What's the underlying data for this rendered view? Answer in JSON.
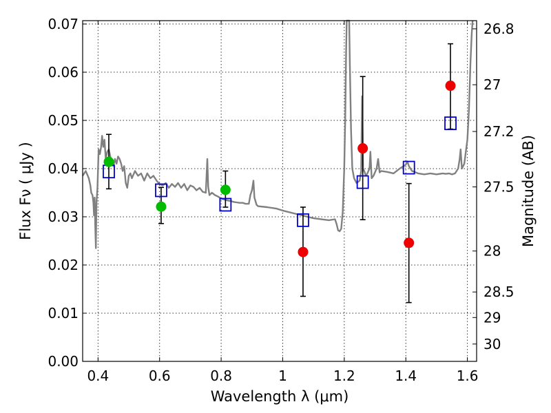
{
  "chart_data": {
    "type": "scatter",
    "title": "",
    "xlabel": "Wavelength  λ (μm)",
    "ylabel": "Flux  Fν  ( μJy )",
    "y2label": "Magnitude (AB)",
    "xlim": [
      0.35,
      1.63
    ],
    "ylim": [
      0.0,
      0.0707
    ],
    "grid": true,
    "legend": "none",
    "xticks": [
      0.4,
      0.6,
      0.8,
      1.0,
      1.2,
      1.4,
      1.6
    ],
    "xtick_labels": [
      "0.4",
      "0.6",
      "0.8",
      "1",
      "1.2",
      "1.4",
      "1.6"
    ],
    "yticks": [
      0.0,
      0.01,
      0.02,
      0.03,
      0.04,
      0.05,
      0.06,
      0.07
    ],
    "ytick_labels": [
      "0.00",
      "0.01",
      "0.02",
      "0.03",
      "0.04",
      "0.05",
      "0.06",
      "0.07"
    ],
    "y2ticks": [
      {
        "label": "26.8",
        "flux": 0.069
      },
      {
        "label": "27",
        "flux": 0.0574
      },
      {
        "label": "27.2",
        "flux": 0.0477
      },
      {
        "label": "27.5",
        "flux": 0.0362
      },
      {
        "label": "28",
        "flux": 0.0229
      },
      {
        "label": "28.5",
        "flux": 0.0144
      },
      {
        "label": "29",
        "flux": 0.0091
      },
      {
        "label": "30",
        "flux": 0.0036
      }
    ],
    "series": [
      {
        "kind": "observed-green",
        "color": "#00bb00",
        "points": [
          {
            "x": 0.435,
            "y": 0.0414,
            "err_low": 0.0056,
            "err_high": 0.0057
          },
          {
            "x": 0.605,
            "y": 0.0321,
            "err_low": 0.0035,
            "err_high": 0.004
          },
          {
            "x": 0.814,
            "y": 0.0356,
            "err_low": 0.0036,
            "err_high": 0.0039
          }
        ]
      },
      {
        "kind": "observed-red",
        "color": "#ee0000",
        "points": [
          {
            "x": 1.066,
            "y": 0.0227,
            "err_low": 0.0092,
            "err_high": 0.0093
          },
          {
            "x": 1.26,
            "y": 0.0442,
            "err_low": 0.0148,
            "err_high": 0.0149
          },
          {
            "x": 1.41,
            "y": 0.0246,
            "err_low": 0.0124,
            "err_high": 0.0123
          },
          {
            "x": 1.545,
            "y": 0.0572,
            "err_low": 0.009,
            "err_high": 0.0087
          }
        ]
      },
      {
        "kind": "model-bandpass",
        "color": "#0000cc",
        "points": [
          {
            "x": 0.435,
            "y": 0.0394
          },
          {
            "x": 0.605,
            "y": 0.0355
          },
          {
            "x": 0.814,
            "y": 0.0325
          },
          {
            "x": 1.066,
            "y": 0.0293
          },
          {
            "x": 1.26,
            "y": 0.0372
          },
          {
            "x": 1.41,
            "y": 0.0402
          },
          {
            "x": 1.545,
            "y": 0.0494
          }
        ]
      },
      {
        "kind": "model-spectrum",
        "color": "#808080",
        "line": [
          [
            0.35,
            0.0385
          ],
          [
            0.36,
            0.0395
          ],
          [
            0.37,
            0.038
          ],
          [
            0.375,
            0.0365
          ],
          [
            0.378,
            0.035
          ],
          [
            0.382,
            0.0345
          ],
          [
            0.385,
            0.033
          ],
          [
            0.387,
            0.0303
          ],
          [
            0.389,
            0.034
          ],
          [
            0.391,
            0.028
          ],
          [
            0.393,
            0.0235
          ],
          [
            0.395,
            0.033
          ],
          [
            0.398,
            0.036
          ],
          [
            0.402,
            0.044
          ],
          [
            0.406,
            0.043
          ],
          [
            0.41,
            0.0445
          ],
          [
            0.413,
            0.0468
          ],
          [
            0.417,
            0.0445
          ],
          [
            0.421,
            0.046
          ],
          [
            0.425,
            0.042
          ],
          [
            0.43,
            0.0435
          ],
          [
            0.435,
            0.044
          ],
          [
            0.44,
            0.0425
          ],
          [
            0.445,
            0.041
          ],
          [
            0.45,
            0.0405
          ],
          [
            0.455,
            0.042
          ],
          [
            0.46,
            0.041
          ],
          [
            0.465,
            0.0425
          ],
          [
            0.47,
            0.042
          ],
          [
            0.475,
            0.041
          ],
          [
            0.48,
            0.0395
          ],
          [
            0.485,
            0.0405
          ],
          [
            0.49,
            0.037
          ],
          [
            0.495,
            0.036
          ],
          [
            0.5,
            0.0385
          ],
          [
            0.505,
            0.039
          ],
          [
            0.51,
            0.038
          ],
          [
            0.52,
            0.0395
          ],
          [
            0.53,
            0.0385
          ],
          [
            0.54,
            0.039
          ],
          [
            0.55,
            0.0375
          ],
          [
            0.56,
            0.039
          ],
          [
            0.57,
            0.038
          ],
          [
            0.58,
            0.0385
          ],
          [
            0.59,
            0.0375
          ],
          [
            0.6,
            0.0368
          ],
          [
            0.61,
            0.0365
          ],
          [
            0.62,
            0.037
          ],
          [
            0.63,
            0.036
          ],
          [
            0.64,
            0.0368
          ],
          [
            0.65,
            0.0362
          ],
          [
            0.66,
            0.037
          ],
          [
            0.67,
            0.036
          ],
          [
            0.68,
            0.0368
          ],
          [
            0.69,
            0.0355
          ],
          [
            0.7,
            0.0365
          ],
          [
            0.71,
            0.0362
          ],
          [
            0.72,
            0.0355
          ],
          [
            0.73,
            0.036
          ],
          [
            0.74,
            0.0352
          ],
          [
            0.75,
            0.035
          ],
          [
            0.752,
            0.0375
          ],
          [
            0.755,
            0.042
          ],
          [
            0.758,
            0.0362
          ],
          [
            0.762,
            0.0345
          ],
          [
            0.77,
            0.035
          ],
          [
            0.78,
            0.0345
          ],
          [
            0.79,
            0.0342
          ],
          [
            0.8,
            0.0338
          ],
          [
            0.81,
            0.0336
          ],
          [
            0.82,
            0.0334
          ],
          [
            0.83,
            0.0333
          ],
          [
            0.84,
            0.0331
          ],
          [
            0.85,
            0.033
          ],
          [
            0.86,
            0.0329
          ],
          [
            0.87,
            0.0329
          ],
          [
            0.88,
            0.0327
          ],
          [
            0.89,
            0.0327
          ],
          [
            0.895,
            0.0345
          ],
          [
            0.9,
            0.0355
          ],
          [
            0.905,
            0.0375
          ],
          [
            0.908,
            0.034
          ],
          [
            0.915,
            0.0325
          ],
          [
            0.92,
            0.0322
          ],
          [
            0.95,
            0.032
          ],
          [
            0.98,
            0.0317
          ],
          [
            1.0,
            0.0313
          ],
          [
            1.05,
            0.0305
          ],
          [
            1.1,
            0.0297
          ],
          [
            1.15,
            0.0293
          ],
          [
            1.17,
            0.0295
          ],
          [
            1.175,
            0.0285
          ],
          [
            1.18,
            0.0272
          ],
          [
            1.185,
            0.027
          ],
          [
            1.19,
            0.0275
          ],
          [
            1.195,
            0.031
          ],
          [
            1.2,
            0.04
          ],
          [
            1.203,
            0.05
          ],
          [
            1.206,
            0.064
          ],
          [
            1.208,
            0.0707
          ],
          [
            1.216,
            0.0707
          ],
          [
            1.218,
            0.062
          ],
          [
            1.222,
            0.048
          ],
          [
            1.226,
            0.04
          ],
          [
            1.232,
            0.038
          ],
          [
            1.24,
            0.037
          ],
          [
            1.25,
            0.0375
          ],
          [
            1.255,
            0.0395
          ],
          [
            1.258,
            0.055
          ],
          [
            1.261,
            0.04
          ],
          [
            1.265,
            0.0395
          ],
          [
            1.27,
            0.0385
          ],
          [
            1.275,
            0.039
          ],
          [
            1.282,
            0.04
          ],
          [
            1.285,
            0.0435
          ],
          [
            1.289,
            0.038
          ],
          [
            1.295,
            0.0385
          ],
          [
            1.305,
            0.04
          ],
          [
            1.31,
            0.042
          ],
          [
            1.315,
            0.0392
          ],
          [
            1.32,
            0.0395
          ],
          [
            1.34,
            0.0393
          ],
          [
            1.36,
            0.039
          ],
          [
            1.38,
            0.04
          ],
          [
            1.4,
            0.0408
          ],
          [
            1.405,
            0.0415
          ],
          [
            1.41,
            0.0405
          ],
          [
            1.42,
            0.0395
          ],
          [
            1.44,
            0.039
          ],
          [
            1.46,
            0.0388
          ],
          [
            1.48,
            0.039
          ],
          [
            1.5,
            0.0388
          ],
          [
            1.52,
            0.039
          ],
          [
            1.53,
            0.0389
          ],
          [
            1.54,
            0.039
          ],
          [
            1.55,
            0.0388
          ],
          [
            1.56,
            0.039
          ],
          [
            1.57,
            0.04
          ],
          [
            1.575,
            0.042
          ],
          [
            1.578,
            0.044
          ],
          [
            1.582,
            0.04
          ],
          [
            1.59,
            0.041
          ],
          [
            1.6,
            0.046
          ],
          [
            1.605,
            0.052
          ],
          [
            1.61,
            0.062
          ],
          [
            1.614,
            0.068
          ],
          [
            1.617,
            0.0707
          ]
        ]
      }
    ]
  }
}
